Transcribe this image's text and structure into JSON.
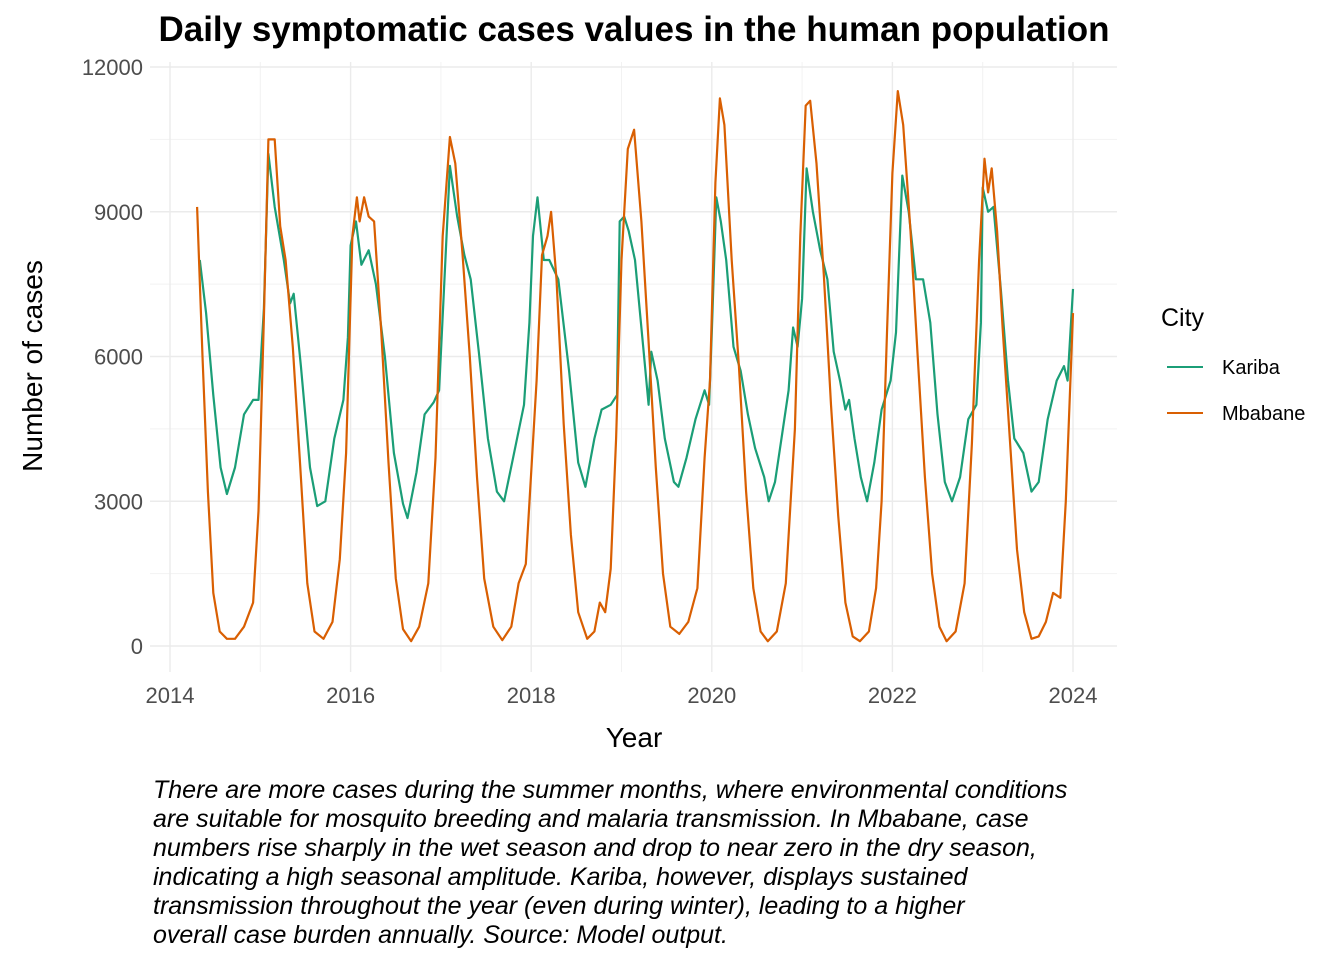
{
  "chart_data": {
    "type": "line",
    "title": "Daily symptomatic cases values in the human population",
    "xlabel": "Year",
    "ylabel": "Number of cases",
    "xlim": [
      2014,
      2024
    ],
    "ylim": [
      0,
      12000
    ],
    "x_ticks": [
      "2014",
      "2016",
      "2018",
      "2020",
      "2022",
      "2024"
    ],
    "y_ticks": [
      "0",
      "3000",
      "6000",
      "9000",
      "12000"
    ],
    "grid": true,
    "legend": {
      "title": "City",
      "placement": "right"
    },
    "series": [
      {
        "name": "Kariba",
        "color": "#1b9e77",
        "points": [
          [
            2014.33,
            8000
          ],
          [
            2014.4,
            6900
          ],
          [
            2014.48,
            5200
          ],
          [
            2014.56,
            3700
          ],
          [
            2014.63,
            3150
          ],
          [
            2014.72,
            3700
          ],
          [
            2014.82,
            4800
          ],
          [
            2014.92,
            5100
          ],
          [
            2014.98,
            5100
          ],
          [
            2015.04,
            7000
          ],
          [
            2015.09,
            10200
          ],
          [
            2015.16,
            9100
          ],
          [
            2015.26,
            8000
          ],
          [
            2015.33,
            7100
          ],
          [
            2015.37,
            7300
          ],
          [
            2015.45,
            5800
          ],
          [
            2015.55,
            3700
          ],
          [
            2015.63,
            2900
          ],
          [
            2015.72,
            3000
          ],
          [
            2015.82,
            4300
          ],
          [
            2015.92,
            5100
          ],
          [
            2015.97,
            6400
          ],
          [
            2016.0,
            8300
          ],
          [
            2016.06,
            8800
          ],
          [
            2016.12,
            7900
          ],
          [
            2016.2,
            8200
          ],
          [
            2016.28,
            7500
          ],
          [
            2016.38,
            6000
          ],
          [
            2016.48,
            4000
          ],
          [
            2016.58,
            2950
          ],
          [
            2016.63,
            2650
          ],
          [
            2016.73,
            3600
          ],
          [
            2016.82,
            4800
          ],
          [
            2016.92,
            5050
          ],
          [
            2016.98,
            5300
          ],
          [
            2017.05,
            8000
          ],
          [
            2017.1,
            9950
          ],
          [
            2017.18,
            8900
          ],
          [
            2017.26,
            8100
          ],
          [
            2017.33,
            7600
          ],
          [
            2017.42,
            6100
          ],
          [
            2017.52,
            4300
          ],
          [
            2017.62,
            3200
          ],
          [
            2017.7,
            3000
          ],
          [
            2017.8,
            3900
          ],
          [
            2017.92,
            5000
          ],
          [
            2017.98,
            6700
          ],
          [
            2018.02,
            8500
          ],
          [
            2018.07,
            9300
          ],
          [
            2018.14,
            8000
          ],
          [
            2018.2,
            8000
          ],
          [
            2018.3,
            7600
          ],
          [
            2018.42,
            5700
          ],
          [
            2018.52,
            3800
          ],
          [
            2018.6,
            3300
          ],
          [
            2018.7,
            4300
          ],
          [
            2018.78,
            4900
          ],
          [
            2018.88,
            5000
          ],
          [
            2018.95,
            5200
          ],
          [
            2018.98,
            8800
          ],
          [
            2019.03,
            8900
          ],
          [
            2019.08,
            8600
          ],
          [
            2019.15,
            8000
          ],
          [
            2019.24,
            6200
          ],
          [
            2019.3,
            5000
          ],
          [
            2019.33,
            6100
          ],
          [
            2019.4,
            5500
          ],
          [
            2019.48,
            4300
          ],
          [
            2019.58,
            3400
          ],
          [
            2019.63,
            3300
          ],
          [
            2019.72,
            3900
          ],
          [
            2019.82,
            4700
          ],
          [
            2019.92,
            5300
          ],
          [
            2019.97,
            5000
          ],
          [
            2020.0,
            6500
          ],
          [
            2020.05,
            9300
          ],
          [
            2020.1,
            8800
          ],
          [
            2020.16,
            8000
          ],
          [
            2020.24,
            6200
          ],
          [
            2020.32,
            5700
          ],
          [
            2020.4,
            4800
          ],
          [
            2020.48,
            4100
          ],
          [
            2020.58,
            3500
          ],
          [
            2020.63,
            3000
          ],
          [
            2020.7,
            3400
          ],
          [
            2020.78,
            4400
          ],
          [
            2020.85,
            5300
          ],
          [
            2020.9,
            6600
          ],
          [
            2020.95,
            6200
          ],
          [
            2021.0,
            7200
          ],
          [
            2021.05,
            9900
          ],
          [
            2021.12,
            9000
          ],
          [
            2021.2,
            8200
          ],
          [
            2021.28,
            7600
          ],
          [
            2021.35,
            6100
          ],
          [
            2021.42,
            5500
          ],
          [
            2021.48,
            4900
          ],
          [
            2021.52,
            5100
          ],
          [
            2021.58,
            4300
          ],
          [
            2021.65,
            3500
          ],
          [
            2021.72,
            3000
          ],
          [
            2021.8,
            3800
          ],
          [
            2021.88,
            4900
          ],
          [
            2021.98,
            5500
          ],
          [
            2022.04,
            6500
          ],
          [
            2022.11,
            9750
          ],
          [
            2022.18,
            9000
          ],
          [
            2022.26,
            7600
          ],
          [
            2022.34,
            7600
          ],
          [
            2022.42,
            6700
          ],
          [
            2022.5,
            4800
          ],
          [
            2022.58,
            3400
          ],
          [
            2022.66,
            3000
          ],
          [
            2022.75,
            3500
          ],
          [
            2022.84,
            4700
          ],
          [
            2022.93,
            5000
          ],
          [
            2022.98,
            6700
          ],
          [
            2023.0,
            9500
          ],
          [
            2023.06,
            9000
          ],
          [
            2023.12,
            9100
          ],
          [
            2023.2,
            7400
          ],
          [
            2023.28,
            5500
          ],
          [
            2023.35,
            4300
          ],
          [
            2023.45,
            4000
          ],
          [
            2023.54,
            3200
          ],
          [
            2023.62,
            3400
          ],
          [
            2023.72,
            4700
          ],
          [
            2023.82,
            5500
          ],
          [
            2023.9,
            5800
          ],
          [
            2023.94,
            5500
          ],
          [
            2024.0,
            7400
          ]
        ]
      },
      {
        "name": "Mbabane",
        "color": "#d95f02",
        "points": [
          [
            2014.3,
            9100
          ],
          [
            2014.36,
            6000
          ],
          [
            2014.42,
            3200
          ],
          [
            2014.48,
            1100
          ],
          [
            2014.55,
            300
          ],
          [
            2014.63,
            150
          ],
          [
            2014.72,
            150
          ],
          [
            2014.82,
            400
          ],
          [
            2014.92,
            900
          ],
          [
            2014.98,
            2800
          ],
          [
            2015.04,
            6800
          ],
          [
            2015.09,
            10500
          ],
          [
            2015.16,
            10500
          ],
          [
            2015.22,
            8700
          ],
          [
            2015.28,
            8000
          ],
          [
            2015.36,
            6200
          ],
          [
            2015.44,
            3800
          ],
          [
            2015.52,
            1300
          ],
          [
            2015.6,
            300
          ],
          [
            2015.7,
            150
          ],
          [
            2015.8,
            500
          ],
          [
            2015.88,
            1800
          ],
          [
            2015.95,
            4000
          ],
          [
            2016.02,
            8500
          ],
          [
            2016.07,
            9300
          ],
          [
            2016.1,
            8800
          ],
          [
            2016.15,
            9300
          ],
          [
            2016.2,
            8900
          ],
          [
            2016.26,
            8800
          ],
          [
            2016.34,
            6500
          ],
          [
            2016.42,
            3800
          ],
          [
            2016.5,
            1400
          ],
          [
            2016.58,
            350
          ],
          [
            2016.67,
            100
          ],
          [
            2016.76,
            400
          ],
          [
            2016.86,
            1300
          ],
          [
            2016.94,
            3900
          ],
          [
            2017.02,
            8500
          ],
          [
            2017.1,
            10550
          ],
          [
            2017.16,
            10000
          ],
          [
            2017.24,
            8100
          ],
          [
            2017.32,
            6000
          ],
          [
            2017.4,
            3500
          ],
          [
            2017.48,
            1400
          ],
          [
            2017.58,
            400
          ],
          [
            2017.68,
            120
          ],
          [
            2017.78,
            400
          ],
          [
            2017.86,
            1300
          ],
          [
            2017.94,
            1700
          ],
          [
            2018.0,
            3600
          ],
          [
            2018.06,
            5500
          ],
          [
            2018.12,
            8100
          ],
          [
            2018.18,
            8500
          ],
          [
            2018.22,
            9000
          ],
          [
            2018.28,
            7600
          ],
          [
            2018.36,
            4600
          ],
          [
            2018.44,
            2300
          ],
          [
            2018.52,
            700
          ],
          [
            2018.62,
            150
          ],
          [
            2018.7,
            300
          ],
          [
            2018.76,
            900
          ],
          [
            2018.82,
            700
          ],
          [
            2018.88,
            1600
          ],
          [
            2018.94,
            4300
          ],
          [
            2019.0,
            8000
          ],
          [
            2019.07,
            10300
          ],
          [
            2019.14,
            10700
          ],
          [
            2019.22,
            8800
          ],
          [
            2019.3,
            6300
          ],
          [
            2019.38,
            3700
          ],
          [
            2019.46,
            1500
          ],
          [
            2019.54,
            400
          ],
          [
            2019.64,
            250
          ],
          [
            2019.74,
            500
          ],
          [
            2019.84,
            1200
          ],
          [
            2019.92,
            3900
          ],
          [
            2019.98,
            5500
          ],
          [
            2020.04,
            9600
          ],
          [
            2020.09,
            11350
          ],
          [
            2020.14,
            10800
          ],
          [
            2020.22,
            8000
          ],
          [
            2020.3,
            5800
          ],
          [
            2020.38,
            3200
          ],
          [
            2020.46,
            1200
          ],
          [
            2020.54,
            300
          ],
          [
            2020.62,
            100
          ],
          [
            2020.72,
            300
          ],
          [
            2020.82,
            1300
          ],
          [
            2020.92,
            4500
          ],
          [
            2020.98,
            8500
          ],
          [
            2021.04,
            11200
          ],
          [
            2021.09,
            11300
          ],
          [
            2021.16,
            10000
          ],
          [
            2021.24,
            7700
          ],
          [
            2021.32,
            5000
          ],
          [
            2021.4,
            2700
          ],
          [
            2021.48,
            900
          ],
          [
            2021.56,
            200
          ],
          [
            2021.64,
            100
          ],
          [
            2021.74,
            300
          ],
          [
            2021.82,
            1200
          ],
          [
            2021.88,
            3000
          ],
          [
            2021.94,
            6500
          ],
          [
            2022.0,
            9800
          ],
          [
            2022.06,
            11500
          ],
          [
            2022.12,
            10800
          ],
          [
            2022.2,
            8600
          ],
          [
            2022.28,
            6000
          ],
          [
            2022.36,
            3500
          ],
          [
            2022.44,
            1500
          ],
          [
            2022.52,
            400
          ],
          [
            2022.6,
            100
          ],
          [
            2022.7,
            300
          ],
          [
            2022.8,
            1300
          ],
          [
            2022.88,
            4200
          ],
          [
            2022.96,
            8000
          ],
          [
            2023.02,
            10100
          ],
          [
            2023.06,
            9400
          ],
          [
            2023.1,
            9900
          ],
          [
            2023.16,
            8600
          ],
          [
            2023.22,
            6600
          ],
          [
            2023.3,
            4300
          ],
          [
            2023.38,
            2000
          ],
          [
            2023.46,
            700
          ],
          [
            2023.54,
            150
          ],
          [
            2023.62,
            200
          ],
          [
            2023.7,
            500
          ],
          [
            2023.78,
            1100
          ],
          [
            2023.86,
            1000
          ],
          [
            2023.92,
            3000
          ],
          [
            2024.0,
            6900
          ]
        ]
      }
    ],
    "caption_lines": [
      "There are more cases during the summer months, where environmental conditions",
      "are suitable for mosquito breeding and malaria transmission. In Mbabane, case",
      "numbers rise sharply in the wet season and drop to near zero in the dry season,",
      "indicating a high seasonal amplitude. Kariba, however, displays sustained",
      "transmission throughout the year (even during winter), leading to a higher",
      "overall case burden annually. Source: Model output."
    ]
  }
}
